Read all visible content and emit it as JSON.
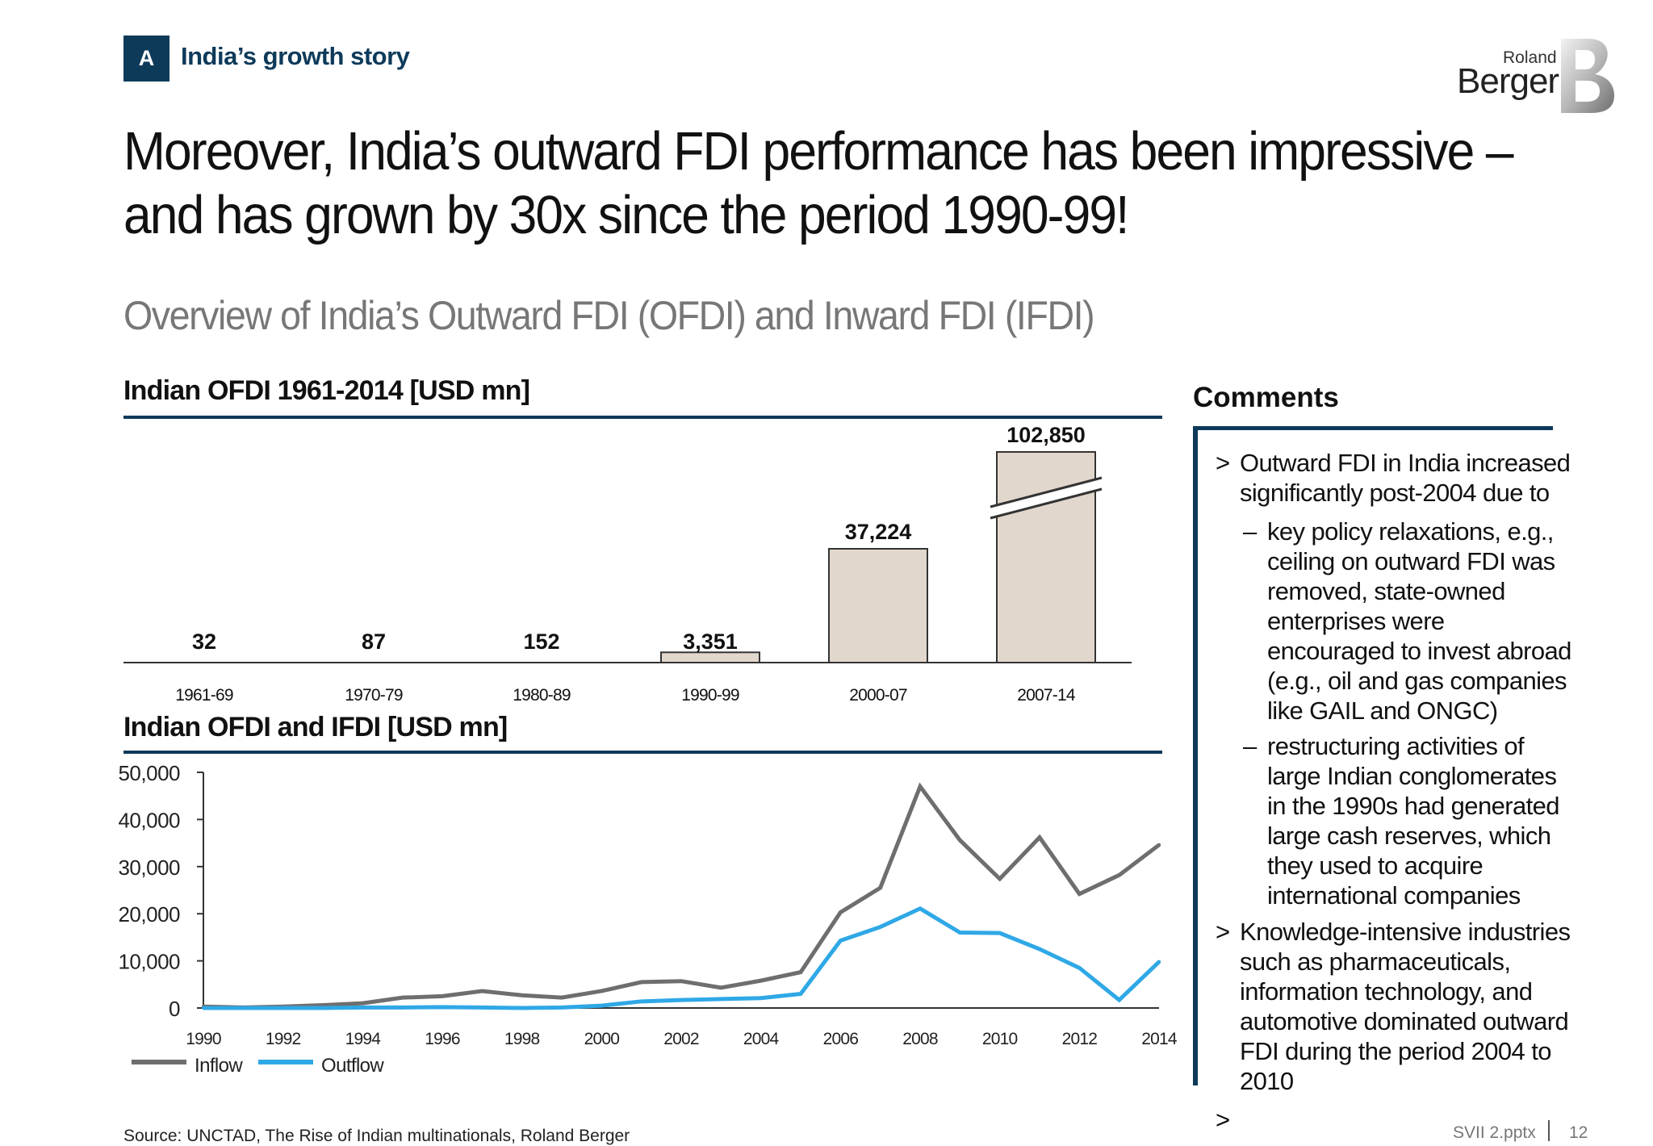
{
  "header": {
    "tag_letter": "A",
    "tag_text": "India’s growth story",
    "logo_small": "Roland",
    "logo_large": "Berger"
  },
  "title_line1": "Moreover, India’s outward FDI performance has been impressive –",
  "title_line2": "and has grown by 30x since the period 1990-99!",
  "subtitle": "Overview of India’s Outward FDI (OFDI) and Inward FDI (IFDI)",
  "chart1_title": "Indian OFDI 1961-2014 [USD mn]",
  "chart2_title": "Indian OFDI and IFDI [USD mn]",
  "comments": {
    "title": "Comments",
    "items": [
      {
        "level": 1,
        "mark": ">",
        "lines": [
          "Outward FDI in India increased",
          "significantly post-2004 due to"
        ]
      },
      {
        "level": 2,
        "mark": "–",
        "lines": [
          "key policy relaxations, e.g.,",
          "ceiling on outward FDI was",
          "removed, state-owned",
          "enterprises were",
          "encouraged to invest abroad",
          "(e.g., oil and gas companies",
          "like GAIL and ONGC)"
        ]
      },
      {
        "level": 2,
        "mark": "–",
        "lines": [
          "restructuring activities of",
          "large Indian conglomerates",
          "in the 1990s had generated",
          "large cash reserves, which",
          "they used to acquire",
          "international companies"
        ]
      },
      {
        "level": 1,
        "mark": ">",
        "lines": [
          "Knowledge-intensive industries",
          "such as pharmaceuticals,",
          "information technology, and",
          "automotive dominated outward",
          "FDI during the period 2004 to",
          "2010"
        ]
      },
      {
        "level": 1,
        "mark": ">",
        "lines": []
      }
    ]
  },
  "source": "Source: UNCTAD, The Rise of Indian multinationals, Roland Berger",
  "footer": {
    "file": "SVII 2.pptx",
    "page": "12"
  },
  "colors": {
    "navy": "#0e3a5a",
    "bar_fill": "#e2d7cd",
    "inflow": "#6e6e6e",
    "outflow": "#2fa8e6"
  },
  "chart_data": [
    {
      "type": "bar",
      "title": "Indian OFDI 1961-2014 [USD mn]",
      "categories": [
        "1961-69",
        "1970-79",
        "1980-89",
        "1990-99",
        "2000-07",
        "2007-14"
      ],
      "values": [
        32,
        87,
        152,
        3351,
        37224,
        102850
      ],
      "value_labels": [
        "32",
        "87",
        "152",
        "3,351",
        "37,224",
        "102,850"
      ],
      "axis_break": "2007-14"
    },
    {
      "type": "line",
      "title": "Indian OFDI and IFDI [USD mn]",
      "x": [
        1990,
        1991,
        1992,
        1993,
        1994,
        1995,
        1996,
        1997,
        1998,
        1999,
        2000,
        2001,
        2002,
        2003,
        2004,
        2005,
        2006,
        2007,
        2008,
        2009,
        2010,
        2011,
        2012,
        2013,
        2014
      ],
      "x_ticks": [
        "1990",
        "1992",
        "1994",
        "1996",
        "1998",
        "2000",
        "2002",
        "2004",
        "2006",
        "2008",
        "2010",
        "2012",
        "2014"
      ],
      "y_ticks": [
        "50,000",
        "40,000",
        "30,000",
        "20,000",
        "10,000",
        "0"
      ],
      "ylim": [
        0,
        50000
      ],
      "legend_position": "bottom-left",
      "series": [
        {
          "name": "Inflow",
          "color": "#6e6e6e",
          "values": [
            300,
            100,
            300,
            600,
            1000,
            2200,
            2500,
            3600,
            2700,
            2200,
            3600,
            5500,
            5700,
            4300,
            5800,
            7600,
            20300,
            25500,
            47000,
            35600,
            27400,
            36200,
            24200,
            28200,
            34600
          ]
        },
        {
          "name": "Outflow",
          "color": "#2fa8e6",
          "values": [
            0,
            0,
            0,
            0,
            100,
            100,
            200,
            100,
            0,
            100,
            500,
            1400,
            1700,
            1900,
            2100,
            3000,
            14300,
            17200,
            21100,
            16000,
            15900,
            12500,
            8500,
            1700,
            9800
          ]
        }
      ]
    }
  ]
}
